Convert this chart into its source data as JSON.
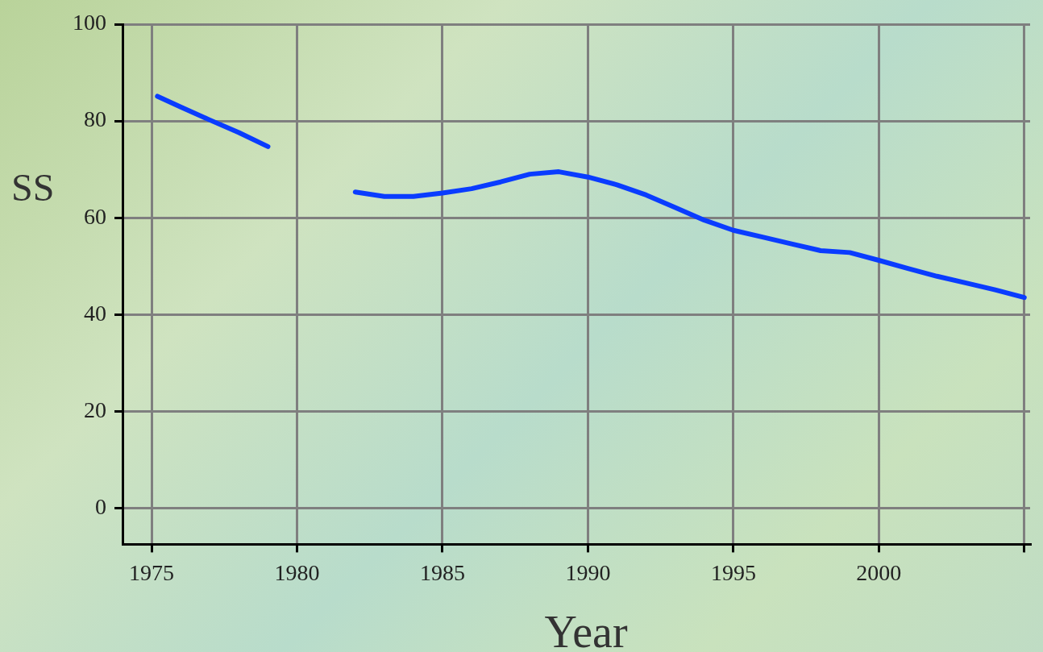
{
  "chart_data": {
    "type": "line",
    "xlabel": "Year",
    "ylabel": "SS",
    "x": [
      1975.2,
      1976,
      1977,
      1978,
      1979,
      1980,
      1982,
      1983,
      1984,
      1985,
      1986,
      1987,
      1988,
      1989,
      1990,
      1991,
      1992,
      1993,
      1994,
      1995,
      1996,
      1997,
      1998,
      1999,
      2000,
      2001,
      2002,
      2003,
      2004,
      2005
    ],
    "series": [
      {
        "color": "#0a3cff",
        "values": [
          85.1,
          82.9,
          80.2,
          77.6,
          74.7,
          null,
          65.3,
          64.4,
          64.4,
          65.1,
          66,
          67.4,
          69,
          69.5,
          68.4,
          66.8,
          64.7,
          62.1,
          59.5,
          57.4,
          56,
          54.6,
          53.2,
          52.8,
          51.2,
          49.5,
          47.9,
          46.5,
          45.1,
          43.5
        ]
      }
    ],
    "xlim": [
      1974,
      2005.2
    ],
    "xticks": [
      1975,
      1980,
      1985,
      1990,
      1995,
      2000,
      {
        "value": 2005,
        "label": null
      }
    ],
    "ylim": [
      -7.5,
      100
    ],
    "yticks": [
      0,
      20,
      40,
      60,
      80,
      100
    ],
    "grid": true,
    "marker": "none",
    "line_style": "solid"
  }
}
